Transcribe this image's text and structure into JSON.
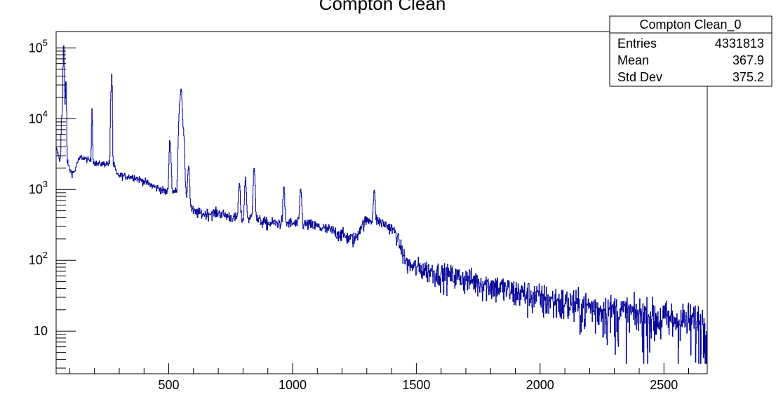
{
  "chart_data": {
    "type": "line",
    "title": "Compton Clean",
    "xlabel": "",
    "ylabel": "",
    "xlim": [
      45,
      2675
    ],
    "ylim": [
      2.5,
      170000
    ],
    "yscale": "log",
    "grid": false,
    "line_color": "#000099",
    "x_ticks": [
      500,
      1000,
      1500,
      2000,
      2500
    ],
    "x_tick_labels": [
      "500",
      "1000",
      "1500",
      "2000",
      "2500"
    ],
    "y_major_ticks": [
      10,
      100,
      1000,
      10000,
      100000
    ],
    "y_tick_labels": [
      {
        "mantissa": "10",
        "exponent": ""
      },
      {
        "mantissa": "10",
        "exponent": "2"
      },
      {
        "mantissa": "10",
        "exponent": "3"
      },
      {
        "mantissa": "10",
        "exponent": "4"
      },
      {
        "mantissa": "10",
        "exponent": "5"
      }
    ],
    "series": [
      {
        "baseline": [
          [
            45,
            3800
          ],
          [
            55,
            3000
          ],
          [
            60,
            2500
          ],
          [
            70,
            3500
          ],
          [
            80,
            4500
          ],
          [
            90,
            2500
          ],
          [
            100,
            1900
          ],
          [
            110,
            1700
          ],
          [
            120,
            1800
          ],
          [
            130,
            2400
          ],
          [
            145,
            2900
          ],
          [
            165,
            2700
          ],
          [
            190,
            2500
          ],
          [
            210,
            2300
          ],
          [
            240,
            2300
          ],
          [
            265,
            2350
          ],
          [
            280,
            2200
          ],
          [
            290,
            1600
          ],
          [
            320,
            1550
          ],
          [
            360,
            1500
          ],
          [
            400,
            1300
          ],
          [
            440,
            1100
          ],
          [
            470,
            1000
          ],
          [
            495,
            900
          ],
          [
            520,
            950
          ],
          [
            540,
            900
          ],
          [
            560,
            1000
          ],
          [
            580,
            650
          ],
          [
            600,
            480
          ],
          [
            640,
            450
          ],
          [
            700,
            470
          ],
          [
            760,
            400
          ],
          [
            800,
            380
          ],
          [
            840,
            400
          ],
          [
            860,
            370
          ],
          [
            900,
            330
          ],
          [
            960,
            340
          ],
          [
            1000,
            330
          ],
          [
            1060,
            320
          ],
          [
            1100,
            300
          ],
          [
            1160,
            260
          ],
          [
            1200,
            230
          ],
          [
            1235,
            200
          ],
          [
            1255,
            200
          ],
          [
            1275,
            300
          ],
          [
            1300,
            370
          ],
          [
            1330,
            380
          ],
          [
            1360,
            340
          ],
          [
            1390,
            300
          ],
          [
            1415,
            250
          ],
          [
            1430,
            180
          ],
          [
            1440,
            140
          ],
          [
            1455,
            100
          ],
          [
            1470,
            85
          ],
          [
            1500,
            80
          ],
          [
            1550,
            72
          ],
          [
            1600,
            65
          ],
          [
            1650,
            60
          ],
          [
            1700,
            55
          ],
          [
            1750,
            50
          ],
          [
            1800,
            45
          ],
          [
            1850,
            40
          ],
          [
            1900,
            36
          ],
          [
            1950,
            33
          ],
          [
            2000,
            30
          ],
          [
            2050,
            27
          ],
          [
            2100,
            25
          ],
          [
            2150,
            23
          ],
          [
            2200,
            22
          ],
          [
            2250,
            20
          ],
          [
            2300,
            19
          ],
          [
            2350,
            18
          ],
          [
            2400,
            17
          ],
          [
            2450,
            16
          ],
          [
            2500,
            15
          ],
          [
            2550,
            14.5
          ],
          [
            2600,
            14
          ],
          [
            2675,
            13
          ]
        ],
        "peaks": [
          [
            67,
            7000
          ],
          [
            71,
            12000
          ],
          [
            75,
            90000
          ],
          [
            77,
            40000
          ],
          [
            81,
            8000
          ],
          [
            85,
            32000
          ],
          [
            190,
            11500
          ],
          [
            266,
            18000
          ],
          [
            270,
            40000
          ],
          [
            505,
            4200
          ],
          [
            542,
            9000
          ],
          [
            548,
            16000
          ],
          [
            552,
            14000
          ],
          [
            560,
            5000
          ],
          [
            580,
            1500
          ],
          [
            785,
            800
          ],
          [
            810,
            1000
          ],
          [
            845,
            1800
          ],
          [
            965,
            650
          ],
          [
            1033,
            720
          ],
          [
            1330,
            560
          ]
        ]
      }
    ],
    "stats_box": {
      "title": "Compton Clean_0",
      "rows": [
        {
          "label": "Entries",
          "value": "4331813"
        },
        {
          "label": "Mean",
          "value": "367.9"
        },
        {
          "label": "Std Dev",
          "value": "375.2"
        }
      ]
    }
  }
}
